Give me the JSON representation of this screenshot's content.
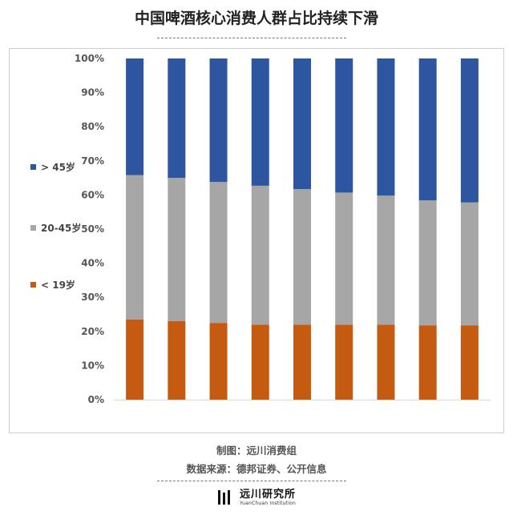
{
  "title": "中国啤酒核心消费人群占比持续下滑",
  "credits": {
    "maker": "制图：远川消费组",
    "source": "数据来源：德邦证券、公开信息"
  },
  "logo": {
    "name_cn": "远川研究所",
    "name_en": "YuanChuan Institution"
  },
  "legend": [
    {
      "label": "> 45岁",
      "color": "#2e55a0"
    },
    {
      "label": "20-45岁",
      "color": "#a6a6a6"
    },
    {
      "label": "< 19岁",
      "color": "#c55a11"
    }
  ],
  "chart_data": {
    "type": "bar",
    "stacked": true,
    "categories": [
      "",
      "",
      "",
      "",
      "",
      "",
      "",
      "",
      ""
    ],
    "series": [
      {
        "name": "< 19岁",
        "color": "#c55a11",
        "values": [
          23.5,
          23,
          22.5,
          22,
          22,
          22,
          22,
          21.8,
          21.8
        ]
      },
      {
        "name": "20-45岁",
        "color": "#a6a6a6",
        "values": [
          42.3,
          42,
          41.3,
          40.7,
          39.7,
          38.7,
          37.8,
          36.6,
          36
        ]
      },
      {
        "name": "> 45岁",
        "color": "#2e55a0",
        "values": [
          34.2,
          35,
          36.2,
          37.3,
          38.3,
          39.3,
          40.2,
          41.6,
          42.2
        ]
      }
    ],
    "y_ticks": [
      "0%",
      "10%",
      "20%",
      "30%",
      "40%",
      "50%",
      "60%",
      "70%",
      "80%",
      "90%",
      "100%"
    ],
    "ylim": [
      0,
      100
    ],
    "grid": false,
    "legend_position": "left"
  }
}
